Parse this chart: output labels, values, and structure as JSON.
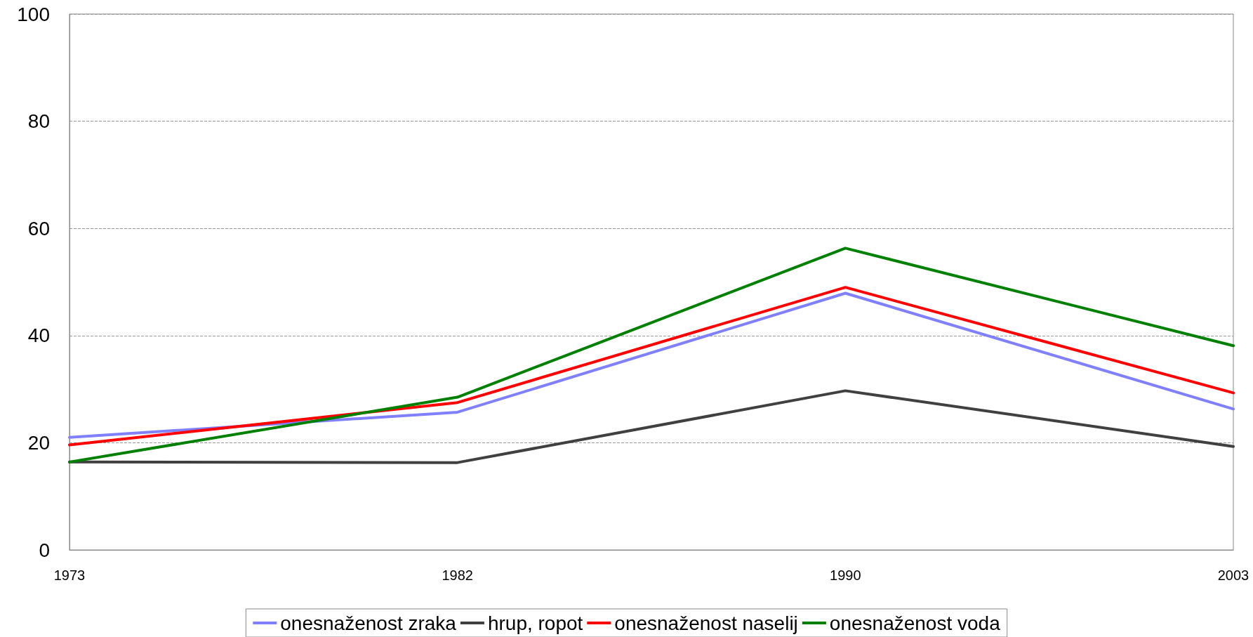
{
  "chart_data": {
    "type": "line",
    "categories": [
      "1973",
      "1982",
      "1990",
      "2003"
    ],
    "series": [
      {
        "name": "onesnaženost zraka",
        "color": "#8080ff",
        "values": [
          21.0,
          25.7,
          47.9,
          26.3
        ]
      },
      {
        "name": "hrup, ropot",
        "color": "#404040",
        "values": [
          16.4,
          16.3,
          29.7,
          19.3
        ]
      },
      {
        "name": "onesnaženost naselij",
        "color": "#ff0000",
        "values": [
          19.6,
          27.5,
          49.0,
          29.3
        ]
      },
      {
        "name": "onesnaženost voda",
        "color": "#008000",
        "values": [
          16.4,
          28.5,
          56.3,
          38.1
        ]
      }
    ],
    "ylim": [
      0,
      100
    ],
    "yticks": [
      0,
      20,
      40,
      60,
      80,
      100
    ],
    "grid": "y",
    "legend": "bottom",
    "marker": "none",
    "line_style": "solid"
  }
}
